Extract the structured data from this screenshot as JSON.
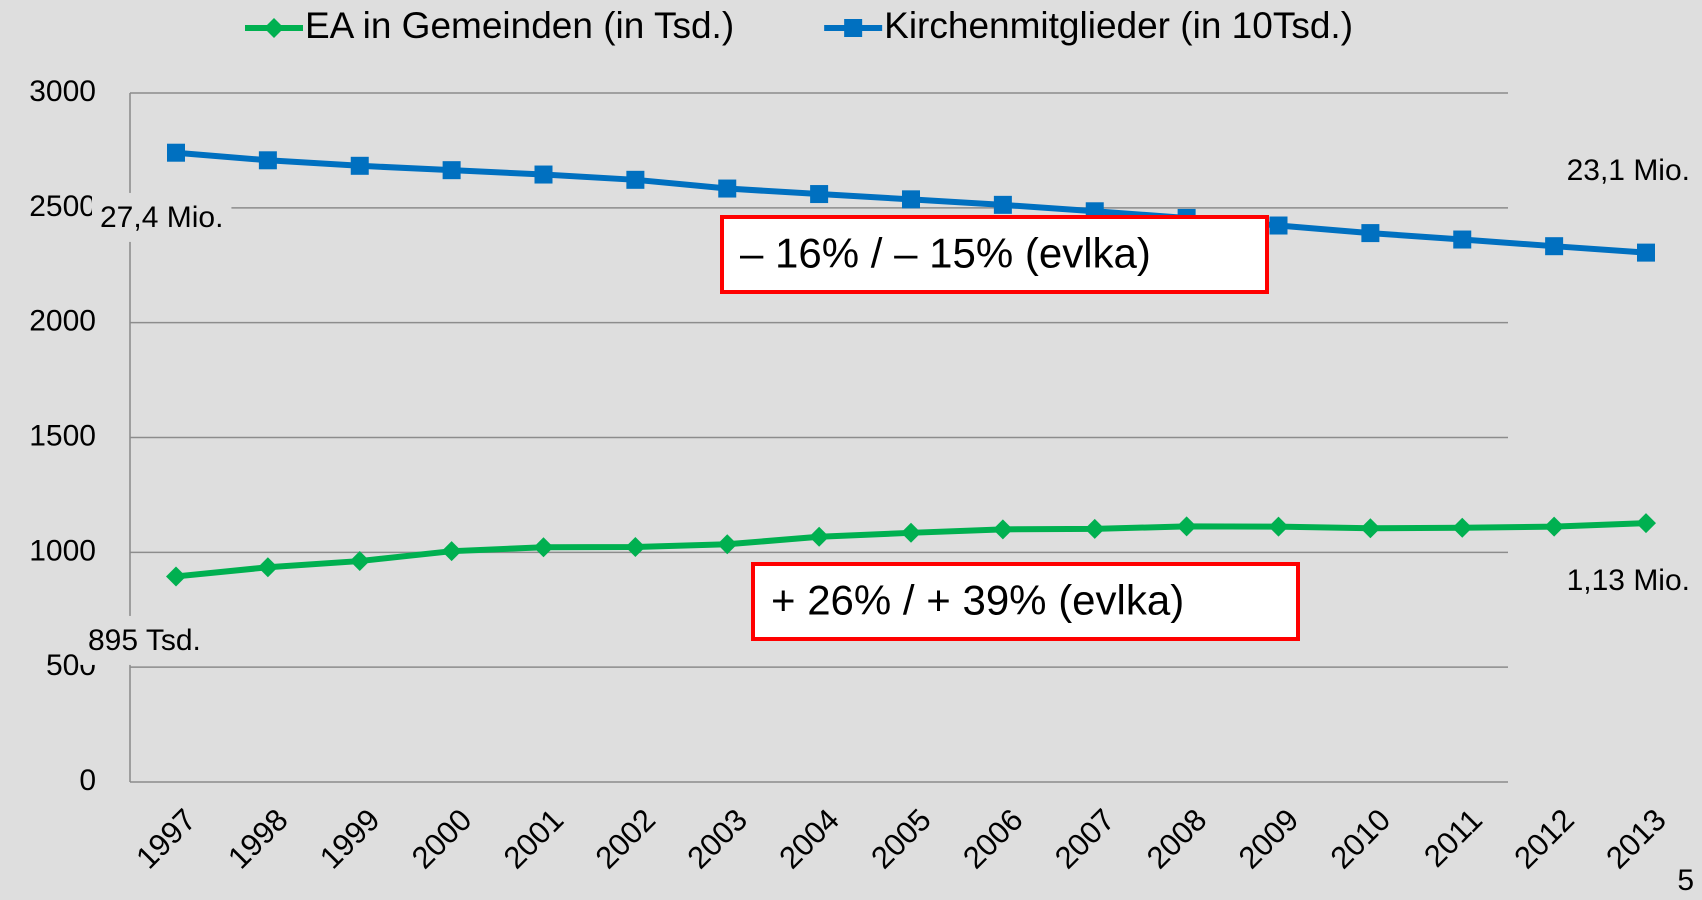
{
  "chart_data": {
    "type": "line",
    "categories": [
      "1997",
      "1998",
      "1999",
      "2000",
      "2001",
      "2002",
      "2003",
      "2004",
      "2005",
      "2006",
      "2007",
      "2008",
      "2009",
      "2010",
      "2011",
      "2012",
      "2013"
    ],
    "series": [
      {
        "name": "EA in Gemeinden (in Tsd.)",
        "color": "#00b050",
        "marker": "diamond",
        "values": [
          895,
          935,
          962,
          1005,
          1022,
          1023,
          1035,
          1068,
          1085,
          1100,
          1102,
          1113,
          1112,
          1105,
          1107,
          1112,
          1127
        ]
      },
      {
        "name": "Kirchenmitglieder (in 10Tsd.)",
        "color": "#0070c0",
        "marker": "square",
        "values": [
          2740,
          2707,
          2683,
          2664,
          2645,
          2622,
          2584,
          2560,
          2537,
          2513,
          2485,
          2456,
          2423,
          2390,
          2362,
          2333,
          2305
        ]
      }
    ],
    "ylim": [
      0,
      3000
    ],
    "yticks": [
      0,
      500,
      1000,
      1500,
      2000,
      2500,
      3000
    ],
    "grid": true,
    "legend": "top",
    "annotations": [
      "27,4 Mio.",
      "23,1 Mio.",
      "895 Tsd.",
      "1,13 Mio.",
      "– 16% / – 15% (evlka)",
      "+ 26% / + 39% (evlka)"
    ],
    "page_number": "5"
  }
}
